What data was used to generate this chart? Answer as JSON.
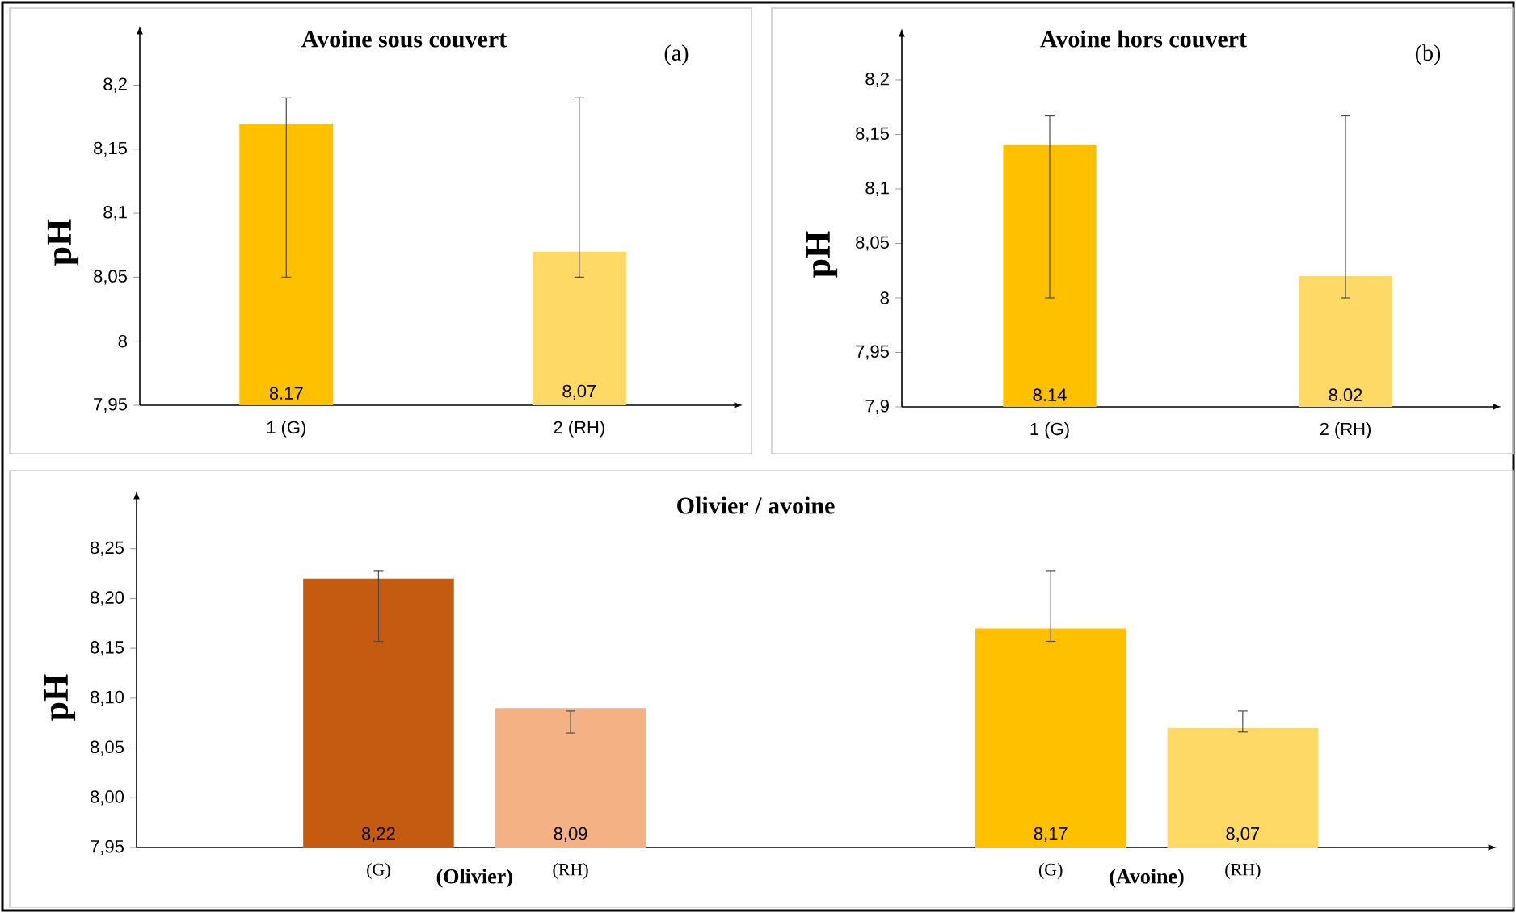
{
  "chart_data": [
    {
      "type": "bar",
      "title": "Avoine sous couvert",
      "ylabel": "pH",
      "categories": [
        "1 (G)",
        "2 (RH)"
      ],
      "values": [
        8.17,
        8.07
      ],
      "colors": [
        "#ffc000",
        "#ffd966"
      ],
      "value_labels": [
        "8.17",
        "8,07"
      ],
      "errors": [
        [
          8.05,
          8.19
        ],
        [
          8.05,
          8.19
        ]
      ],
      "ylim": [
        7.95,
        8.24
      ],
      "yticks": [
        {
          "value": 7.95,
          "label": "7,95"
        },
        {
          "value": 8.0,
          "label": "8"
        },
        {
          "value": 8.05,
          "label": "8,05"
        },
        {
          "value": 8.1,
          "label": "8,1"
        },
        {
          "value": 8.15,
          "label": "8,15"
        },
        {
          "value": 8.2,
          "label": "8,2"
        }
      ],
      "annotations": [
        "(a)"
      ]
    },
    {
      "type": "bar",
      "title": "Avoine hors couvert",
      "ylabel": "pH",
      "categories": [
        "1 (G)",
        "2 (RH)"
      ],
      "values": [
        8.14,
        8.02
      ],
      "colors": [
        "#ffc000",
        "#ffd966"
      ],
      "value_labels": [
        "8.14",
        "8.02"
      ],
      "errors": [
        [
          8.0,
          8.167
        ],
        [
          8.0,
          8.167
        ]
      ],
      "ylim": [
        7.9,
        8.24
      ],
      "yticks": [
        {
          "value": 7.9,
          "label": "7,9"
        },
        {
          "value": 7.95,
          "label": "7,95"
        },
        {
          "value": 8.0,
          "label": "8"
        },
        {
          "value": 8.05,
          "label": "8,05"
        },
        {
          "value": 8.1,
          "label": "8,1"
        },
        {
          "value": 8.15,
          "label": "8,15"
        },
        {
          "value": 8.2,
          "label": "8,2"
        }
      ],
      "annotations": [
        "(b)"
      ]
    },
    {
      "type": "bar",
      "title": "Olivier / avoine",
      "ylabel": "pH",
      "categories": [
        "(G)",
        "(RH)",
        "(G)",
        "(RH)"
      ],
      "values": [
        8.22,
        8.09,
        8.17,
        8.07
      ],
      "colors": [
        "#c55a11",
        "#f4b183",
        "#ffc000",
        "#ffd966"
      ],
      "value_labels": [
        "8,22",
        "8,09",
        "8,17",
        "8,07"
      ],
      "errors": [
        [
          8.157,
          8.228
        ],
        [
          8.065,
          8.087
        ],
        [
          8.157,
          8.228
        ],
        [
          8.066,
          8.087
        ]
      ],
      "ylim": [
        7.95,
        8.3
      ],
      "yticks": [
        {
          "value": 7.95,
          "label": "7,95"
        },
        {
          "value": 8.0,
          "label": "8,00"
        },
        {
          "value": 8.05,
          "label": "8,05"
        },
        {
          "value": 8.1,
          "label": "8,10"
        },
        {
          "value": 8.15,
          "label": "8,15"
        },
        {
          "value": 8.2,
          "label": "8,20"
        },
        {
          "value": 8.25,
          "label": "8,25"
        }
      ],
      "annotations": [
        "(Olivier)",
        "(Avoine)"
      ]
    }
  ]
}
